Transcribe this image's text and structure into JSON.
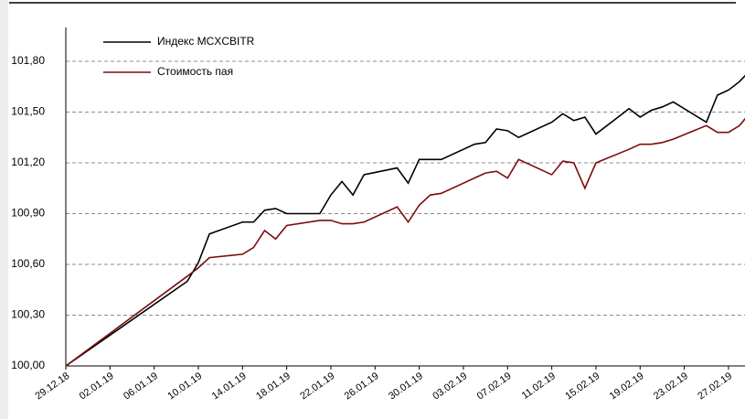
{
  "chart_data": {
    "type": "line",
    "x": [
      "29.12.18",
      "09.01.19",
      "10.01.19",
      "11.01.19",
      "14.01.19",
      "15.01.19",
      "16.01.19",
      "17.01.19",
      "18.01.19",
      "21.01.19",
      "22.01.19",
      "23.01.19",
      "24.01.19",
      "25.01.19",
      "28.01.19",
      "29.01.19",
      "30.01.19",
      "31.01.19",
      "01.02.19",
      "04.02.19",
      "05.02.19",
      "06.02.19",
      "07.02.19",
      "08.02.19",
      "11.02.19",
      "12.02.19",
      "13.02.19",
      "14.02.19",
      "15.02.19",
      "18.02.19",
      "19.02.19",
      "20.02.19",
      "21.02.19",
      "22.02.19",
      "25.02.19",
      "26.02.19",
      "27.02.19",
      "28.02.19",
      "01.03.19"
    ],
    "series": [
      {
        "name": "Индекс MCXCBITR",
        "color": "#000000",
        "values": [
          100.0,
          100.5,
          100.61,
          100.78,
          100.85,
          100.85,
          100.92,
          100.93,
          100.9,
          100.9,
          101.01,
          101.09,
          101.01,
          101.13,
          101.17,
          101.08,
          101.22,
          101.22,
          101.22,
          101.31,
          101.32,
          101.4,
          101.39,
          101.35,
          101.44,
          101.49,
          101.45,
          101.47,
          101.37,
          101.52,
          101.47,
          101.51,
          101.53,
          101.56,
          101.44,
          101.6,
          101.63,
          101.68,
          101.75
        ]
      },
      {
        "name": "Стоимость пая",
        "color": "#7b0c0c",
        "values": [
          100.0,
          100.53,
          100.58,
          100.64,
          100.66,
          100.7,
          100.8,
          100.75,
          100.83,
          100.86,
          100.86,
          100.84,
          100.84,
          100.85,
          100.94,
          100.85,
          100.95,
          101.01,
          101.02,
          101.11,
          101.14,
          101.15,
          101.11,
          101.22,
          101.13,
          101.21,
          101.2,
          101.05,
          101.2,
          101.28,
          101.31,
          101.31,
          101.32,
          101.34,
          101.42,
          101.38,
          101.38,
          101.42,
          101.5
        ]
      }
    ],
    "xlim": [
      "29.12.18",
      "28.02.19"
    ],
    "xticks": [
      "29.12.18",
      "02.01.19",
      "06.01.19",
      "10.01.19",
      "14.01.19",
      "18.01.19",
      "22.01.19",
      "26.01.19",
      "30.01.19",
      "03.02.19",
      "07.02.19",
      "11.02.19",
      "15.02.19",
      "19.02.19",
      "23.02.19",
      "27.02.19"
    ],
    "ylim": [
      100,
      102
    ],
    "yticks": [
      {
        "value": 100,
        "label": "100,00"
      },
      {
        "value": 100.3,
        "label": "100,30"
      },
      {
        "value": 100.6,
        "label": "100,60"
      },
      {
        "value": 100.9,
        "label": "100,90"
      },
      {
        "value": 101.2,
        "label": "101,20"
      },
      {
        "value": 101.5,
        "label": "101,50"
      },
      {
        "value": 101.8,
        "label": "101,80"
      }
    ],
    "grid": true,
    "legend": "top-left"
  }
}
